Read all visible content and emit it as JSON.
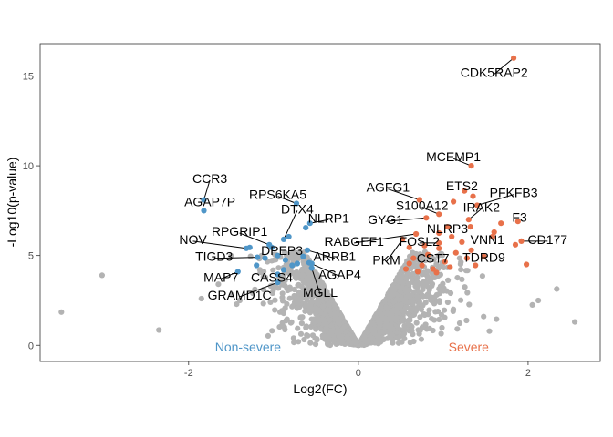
{
  "chart_data": {
    "type": "scatter",
    "title": "",
    "xlabel": "Log2(FC)",
    "ylabel": "-Log10(p-value)",
    "xlim": [
      -3.75,
      2.85
    ],
    "ylim": [
      -0.9,
      16.8
    ],
    "x_ticks": [
      -2,
      0,
      2
    ],
    "y_ticks": [
      0,
      5,
      10,
      15
    ],
    "x_tick_labels": [
      "-2",
      "0",
      "2"
    ],
    "y_tick_labels": [
      "0",
      "5",
      "10",
      "15"
    ],
    "grid": false,
    "colors": {
      "severe": "#e8714a",
      "non_severe": "#4f96c8",
      "background": "#b3b3b3"
    },
    "group_labels": [
      {
        "text": "Non-severe",
        "x": -1.3,
        "y": -0.1,
        "color": "#4f96c8"
      },
      {
        "text": "Severe",
        "x": 1.3,
        "y": -0.1,
        "color": "#e8714a"
      }
    ],
    "series": [
      {
        "group": "non_severe",
        "points": [
          {
            "label": "CCR3",
            "x": -1.82,
            "y": 8.1,
            "lx": -1.75,
            "ly": 9.3
          },
          {
            "label": "AGAP7P",
            "x": -1.82,
            "y": 7.5,
            "lx": -1.75,
            "ly": 8.0
          },
          {
            "label": "RPS6KA5",
            "x": -0.73,
            "y": 7.9,
            "lx": -0.95,
            "ly": 8.4
          },
          {
            "label": "NLRP1",
            "x": -0.57,
            "y": 6.8,
            "lx": -0.35,
            "ly": 7.1
          },
          {
            "label": "RPGRIP1",
            "x": -1.05,
            "y": 5.6,
            "lx": -1.4,
            "ly": 6.35
          },
          {
            "label": "NOV",
            "x": -1.32,
            "y": 5.4,
            "lx": -1.95,
            "ly": 5.9
          },
          {
            "label": "DTX4",
            "x": -0.88,
            "y": 5.9,
            "lx": -0.72,
            "ly": 7.6
          },
          {
            "label": "DPEP3",
            "x": -0.95,
            "y": 5.0,
            "lx": -0.9,
            "ly": 5.3
          },
          {
            "label": "TIGD3",
            "x": -1.19,
            "y": 4.9,
            "lx": -1.7,
            "ly": 4.95
          },
          {
            "label": "ARRB1",
            "x": -0.6,
            "y": 5.3,
            "lx": -0.28,
            "ly": 4.95
          },
          {
            "label": "MAP7",
            "x": -1.42,
            "y": 4.1,
            "lx": -1.62,
            "ly": 3.8
          },
          {
            "label": "CASS4",
            "x": -0.88,
            "y": 4.2,
            "lx": -1.02,
            "ly": 3.8
          },
          {
            "label": "AGAP4",
            "x": -0.58,
            "y": 4.6,
            "lx": -0.22,
            "ly": 3.95
          },
          {
            "label": "GRAMD1C",
            "x": -0.95,
            "y": 3.5,
            "lx": -1.4,
            "ly": 2.8
          },
          {
            "label": "MGLL",
            "x": -0.55,
            "y": 4.3,
            "lx": -0.45,
            "ly": 2.95
          },
          {
            "label": "",
            "x": -1.02,
            "y": 5.45
          },
          {
            "label": "",
            "x": -1.2,
            "y": 4.45
          },
          {
            "label": "",
            "x": -0.82,
            "y": 6.05
          },
          {
            "label": "",
            "x": -0.72,
            "y": 4.55
          },
          {
            "label": "",
            "x": -0.78,
            "y": 4.45
          },
          {
            "label": "",
            "x": -0.65,
            "y": 4.95
          },
          {
            "label": "",
            "x": -0.55,
            "y": 4.55
          },
          {
            "label": "",
            "x": -0.62,
            "y": 6.55
          },
          {
            "label": "",
            "x": -1.28,
            "y": 5.45
          },
          {
            "label": "",
            "x": -1.1,
            "y": 4.85
          },
          {
            "label": "",
            "x": -0.86,
            "y": 4.75
          },
          {
            "label": "",
            "x": -0.95,
            "y": 3.95
          }
        ]
      },
      {
        "group": "severe",
        "points": [
          {
            "label": "CDK5RAP2",
            "x": 1.83,
            "y": 16.0,
            "lx": 1.6,
            "ly": 15.2
          },
          {
            "label": "MCEMP1",
            "x": 1.33,
            "y": 10.0,
            "lx": 1.12,
            "ly": 10.5
          },
          {
            "label": "ETS2",
            "x": 1.35,
            "y": 8.3,
            "lx": 1.22,
            "ly": 8.9
          },
          {
            "label": "PFKFB3",
            "x": 1.4,
            "y": 7.8,
            "lx": 1.83,
            "ly": 8.5
          },
          {
            "label": "AGFG1",
            "x": 0.72,
            "y": 8.1,
            "lx": 0.35,
            "ly": 8.8
          },
          {
            "label": "S100A12",
            "x": 0.95,
            "y": 7.3,
            "lx": 0.75,
            "ly": 7.8
          },
          {
            "label": "IRAK2",
            "x": 1.3,
            "y": 7.0,
            "lx": 1.45,
            "ly": 7.7
          },
          {
            "label": "F3",
            "x": 1.88,
            "y": 6.9,
            "lx": 1.9,
            "ly": 7.15
          },
          {
            "label": "GYG1",
            "x": 0.8,
            "y": 7.1,
            "lx": 0.32,
            "ly": 7.0
          },
          {
            "label": "NLRP3",
            "x": 1.05,
            "y": 6.6,
            "lx": 1.05,
            "ly": 6.5
          },
          {
            "label": "RABGEF1",
            "x": 0.68,
            "y": 6.2,
            "lx": -0.05,
            "ly": 5.8
          },
          {
            "label": "FOSL2",
            "x": 0.95,
            "y": 5.7,
            "lx": 0.72,
            "ly": 5.8
          },
          {
            "label": "VNN1",
            "x": 1.6,
            "y": 6.3,
            "lx": 1.52,
            "ly": 5.9
          },
          {
            "label": "CD177",
            "x": 1.92,
            "y": 5.8,
            "lx": 2.23,
            "ly": 5.9
          },
          {
            "label": "TDRD9",
            "x": 1.33,
            "y": 5.3,
            "lx": 1.48,
            "ly": 4.9
          },
          {
            "label": "PKM",
            "x": 0.52,
            "y": 5.9,
            "lx": 0.33,
            "ly": 4.75
          },
          {
            "label": "CST7",
            "x": 0.95,
            "y": 5.4,
            "lx": 0.88,
            "ly": 4.85
          },
          {
            "label": "",
            "x": 1.25,
            "y": 8.6
          },
          {
            "label": "",
            "x": 1.12,
            "y": 8.0
          },
          {
            "label": "",
            "x": 1.32,
            "y": 6.6
          },
          {
            "label": "",
            "x": 1.68,
            "y": 6.8
          },
          {
            "label": "",
            "x": 1.58,
            "y": 6.05
          },
          {
            "label": "",
            "x": 1.85,
            "y": 5.6
          },
          {
            "label": "",
            "x": 1.98,
            "y": 4.5
          },
          {
            "label": "",
            "x": 1.48,
            "y": 4.95
          },
          {
            "label": "",
            "x": 1.38,
            "y": 4.45
          },
          {
            "label": "",
            "x": 1.22,
            "y": 5.75
          },
          {
            "label": "",
            "x": 1.15,
            "y": 5.15
          },
          {
            "label": "",
            "x": 0.6,
            "y": 5.45
          },
          {
            "label": "",
            "x": 0.65,
            "y": 4.85
          },
          {
            "label": "",
            "x": 0.75,
            "y": 4.45
          },
          {
            "label": "",
            "x": 0.82,
            "y": 5.05
          },
          {
            "label": "",
            "x": 0.88,
            "y": 4.25
          },
          {
            "label": "",
            "x": 1.02,
            "y": 4.65
          },
          {
            "label": "",
            "x": 1.08,
            "y": 4.35
          },
          {
            "label": "",
            "x": 0.56,
            "y": 4.25
          },
          {
            "label": "",
            "x": 0.7,
            "y": 4.1
          },
          {
            "label": "",
            "x": 0.92,
            "y": 4.05
          },
          {
            "label": "",
            "x": 0.6,
            "y": 4.55
          },
          {
            "label": "",
            "x": 1.1,
            "y": 6.05
          },
          {
            "label": "",
            "x": 1.28,
            "y": 4.85
          },
          {
            "label": "",
            "x": 0.78,
            "y": 5.55
          },
          {
            "label": "",
            "x": 0.95,
            "y": 6.25
          }
        ]
      },
      {
        "group": "background",
        "points": [
          {
            "x": -3.5,
            "y": 1.85
          },
          {
            "x": -3.02,
            "y": 3.9
          },
          {
            "x": -2.35,
            "y": 0.85
          },
          {
            "x": -1.65,
            "y": 3.4
          },
          {
            "x": -1.85,
            "y": 2.6
          },
          {
            "x": 2.55,
            "y": 1.3
          },
          {
            "x": 2.05,
            "y": 2.25
          },
          {
            "x": 2.12,
            "y": 2.5
          }
        ]
      }
    ]
  }
}
